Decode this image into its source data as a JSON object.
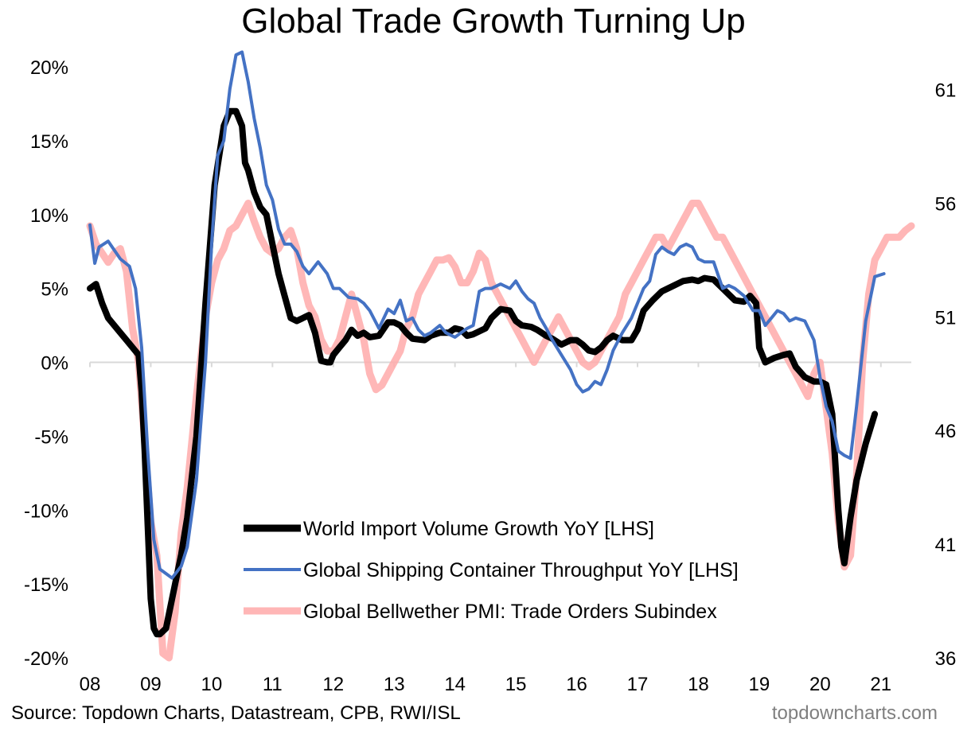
{
  "chart_data": {
    "type": "line",
    "title": "Global Trade Growth Turning Up",
    "left_axis": {
      "ylim": [
        -20,
        20
      ],
      "ticks": [
        "20%",
        "15%",
        "10%",
        "5%",
        "0%",
        "-5%",
        "-10%",
        "-15%",
        "-20%"
      ]
    },
    "right_axis": {
      "ylim": [
        36,
        62
      ],
      "ticks": [
        "61",
        "56",
        "51",
        "46",
        "41",
        "36"
      ]
    },
    "x_axis": {
      "xlim": [
        2008,
        2021.5
      ],
      "ticks": [
        "08",
        "09",
        "10",
        "11",
        "12",
        "13",
        "14",
        "15",
        "16",
        "17",
        "18",
        "19",
        "20",
        "21"
      ]
    },
    "legend_position": "lower-center",
    "series": [
      {
        "name": "World Import Volume Growth YoY [LHS]",
        "color": "#000000",
        "axis": "left",
        "x": [
          2008.0,
          2008.1,
          2008.2,
          2008.3,
          2008.5,
          2008.6,
          2008.8,
          2008.85,
          2008.9,
          2008.95,
          2009.0,
          2009.05,
          2009.1,
          2009.15,
          2009.25,
          2009.35,
          2009.5,
          2009.6,
          2009.75,
          2009.9,
          2010.05,
          2010.2,
          2010.3,
          2010.4,
          2010.5,
          2010.55,
          2010.6,
          2010.7,
          2010.8,
          2010.9,
          2011.0,
          2011.1,
          2011.2,
          2011.3,
          2011.4,
          2011.5,
          2011.6,
          2011.7,
          2011.8,
          2011.9,
          2011.95,
          2012.0,
          2012.1,
          2012.2,
          2012.3,
          2012.4,
          2012.5,
          2012.6,
          2012.75,
          2012.9,
          2013.0,
          2013.1,
          2013.2,
          2013.3,
          2013.5,
          2013.6,
          2013.75,
          2013.9,
          2014.0,
          2014.1,
          2014.2,
          2014.3,
          2014.5,
          2014.6,
          2014.75,
          2014.9,
          2015.0,
          2015.1,
          2015.25,
          2015.35,
          2015.5,
          2015.6,
          2015.75,
          2015.9,
          2016.0,
          2016.1,
          2016.2,
          2016.3,
          2016.4,
          2016.5,
          2016.6,
          2016.75,
          2016.9,
          2017.0,
          2017.1,
          2017.25,
          2017.4,
          2017.5,
          2017.6,
          2017.75,
          2017.9,
          2018.0,
          2018.1,
          2018.25,
          2018.4,
          2018.5,
          2018.6,
          2018.75,
          2018.85,
          2018.95,
          2019.0,
          2019.1,
          2019.25,
          2019.4,
          2019.5,
          2019.6,
          2019.75,
          2019.9,
          2020.0,
          2020.1,
          2020.15,
          2020.2,
          2020.3,
          2020.35,
          2020.4,
          2020.5,
          2020.6,
          2020.75,
          2020.9
        ],
        "y": [
          5.0,
          5.3,
          4.0,
          3.0,
          2.0,
          1.5,
          0.5,
          -2.0,
          -6.0,
          -11.0,
          -16.0,
          -18.0,
          -18.4,
          -18.4,
          -18.0,
          -16.0,
          -13.0,
          -10.5,
          -5.0,
          4.0,
          12.0,
          16.0,
          17.0,
          17.0,
          16.0,
          13.5,
          13.0,
          11.5,
          10.5,
          10.0,
          8.0,
          6.0,
          4.5,
          3.0,
          2.8,
          3.0,
          3.2,
          2.0,
          0.1,
          0.0,
          0.0,
          0.5,
          1.0,
          1.5,
          2.2,
          1.8,
          2.0,
          1.7,
          1.8,
          2.7,
          2.7,
          2.5,
          2.0,
          1.6,
          1.5,
          1.8,
          2.0,
          2.0,
          2.3,
          2.2,
          1.8,
          1.9,
          2.3,
          3.0,
          3.6,
          3.5,
          2.8,
          2.5,
          2.4,
          2.2,
          1.8,
          1.6,
          1.2,
          1.5,
          1.5,
          1.2,
          0.8,
          0.7,
          1.0,
          1.5,
          1.8,
          1.5,
          1.5,
          2.2,
          3.5,
          4.2,
          4.8,
          5.0,
          5.2,
          5.5,
          5.6,
          5.5,
          5.7,
          5.6,
          5.0,
          4.6,
          4.2,
          4.1,
          4.5,
          4.0,
          1.0,
          0.0,
          0.3,
          0.5,
          0.6,
          -0.3,
          -1.0,
          -1.3,
          -1.3,
          -1.5,
          -2.5,
          -3.5,
          -10.0,
          -12.5,
          -13.6,
          -10.5,
          -8.0,
          -5.5,
          -3.5
        ]
      },
      {
        "name": "Global Shipping Container Throughput YoY [LHS]",
        "color": "#4472c4",
        "axis": "left",
        "x": [
          2008.0,
          2008.08,
          2008.15,
          2008.3,
          2008.5,
          2008.65,
          2008.75,
          2008.85,
          2008.95,
          2009.05,
          2009.15,
          2009.25,
          2009.35,
          2009.5,
          2009.6,
          2009.75,
          2009.9,
          2010.0,
          2010.1,
          2010.2,
          2010.3,
          2010.4,
          2010.5,
          2010.55,
          2010.6,
          2010.7,
          2010.8,
          2010.9,
          2011.0,
          2011.1,
          2011.2,
          2011.3,
          2011.4,
          2011.5,
          2011.6,
          2011.75,
          2011.9,
          2012.0,
          2012.1,
          2012.25,
          2012.4,
          2012.5,
          2012.6,
          2012.75,
          2012.9,
          2013.0,
          2013.1,
          2013.2,
          2013.3,
          2013.4,
          2013.5,
          2013.6,
          2013.75,
          2013.85,
          2014.0,
          2014.1,
          2014.2,
          2014.3,
          2014.4,
          2014.5,
          2014.6,
          2014.75,
          2014.9,
          2015.0,
          2015.1,
          2015.2,
          2015.3,
          2015.4,
          2015.5,
          2015.6,
          2015.75,
          2015.9,
          2016.0,
          2016.1,
          2016.2,
          2016.3,
          2016.4,
          2016.5,
          2016.6,
          2016.75,
          2016.9,
          2017.0,
          2017.1,
          2017.2,
          2017.3,
          2017.4,
          2017.5,
          2017.6,
          2017.7,
          2017.8,
          2017.9,
          2018.0,
          2018.1,
          2018.25,
          2018.4,
          2018.5,
          2018.6,
          2018.75,
          2018.9,
          2019.0,
          2019.1,
          2019.2,
          2019.3,
          2019.4,
          2019.5,
          2019.6,
          2019.75,
          2019.9,
          2020.0,
          2020.1,
          2020.2,
          2020.3,
          2020.4,
          2020.5,
          2020.6,
          2020.75,
          2020.9,
          2021.05
        ],
        "y": [
          9.3,
          6.7,
          7.8,
          8.2,
          7.0,
          6.5,
          5.0,
          1.0,
          -6.0,
          -12.0,
          -14.0,
          -14.3,
          -14.6,
          -13.8,
          -12.5,
          -8.0,
          0.0,
          8.0,
          14.0,
          15.0,
          18.5,
          20.8,
          21.0,
          20.0,
          19.0,
          16.5,
          14.5,
          12.0,
          11.0,
          9.0,
          8.0,
          8.0,
          7.5,
          6.5,
          6.0,
          6.8,
          6.0,
          5.0,
          5.0,
          4.4,
          4.3,
          4.0,
          3.5,
          2.3,
          3.6,
          3.3,
          4.2,
          2.8,
          3.0,
          2.2,
          1.8,
          2.0,
          2.5,
          2.0,
          1.7,
          2.0,
          2.3,
          2.5,
          4.8,
          5.0,
          5.0,
          5.3,
          5.0,
          5.5,
          4.8,
          4.3,
          4.0,
          3.0,
          2.3,
          1.5,
          0.5,
          -0.5,
          -1.5,
          -2.0,
          -1.8,
          -1.3,
          -1.5,
          -0.5,
          0.8,
          2.0,
          3.0,
          4.0,
          5.0,
          5.5,
          7.3,
          7.8,
          7.5,
          7.3,
          7.8,
          8.0,
          7.8,
          7.0,
          6.8,
          6.8,
          5.0,
          5.2,
          5.0,
          4.5,
          3.5,
          3.5,
          2.5,
          3.0,
          3.5,
          3.3,
          2.8,
          3.0,
          2.8,
          1.5,
          -1.0,
          -3.0,
          -4.0,
          -6.0,
          -6.3,
          -6.5,
          -3.0,
          2.8,
          5.8,
          6.0
        ]
      },
      {
        "name": "Global Bellwether PMI: Trade Orders Subindex",
        "color": "#ffaaaa",
        "axis": "right",
        "x": [
          2008.0,
          2008.1,
          2008.2,
          2008.3,
          2008.4,
          2008.5,
          2008.6,
          2008.7,
          2008.8,
          2008.9,
          2009.0,
          2009.1,
          2009.2,
          2009.3,
          2009.4,
          2009.5,
          2009.6,
          2009.75,
          2009.9,
          2010.0,
          2010.1,
          2010.2,
          2010.3,
          2010.4,
          2010.5,
          2010.6,
          2010.7,
          2010.8,
          2010.9,
          2011.0,
          2011.1,
          2011.2,
          2011.3,
          2011.4,
          2011.5,
          2011.6,
          2011.7,
          2011.8,
          2011.9,
          2012.0,
          2012.1,
          2012.2,
          2012.3,
          2012.4,
          2012.5,
          2012.6,
          2012.7,
          2012.8,
          2012.9,
          2013.0,
          2013.1,
          2013.2,
          2013.3,
          2013.4,
          2013.5,
          2013.6,
          2013.7,
          2013.8,
          2013.9,
          2014.0,
          2014.1,
          2014.2,
          2014.3,
          2014.4,
          2014.5,
          2014.6,
          2014.7,
          2014.8,
          2014.9,
          2015.0,
          2015.1,
          2015.2,
          2015.3,
          2015.4,
          2015.5,
          2015.6,
          2015.7,
          2015.8,
          2015.9,
          2016.0,
          2016.1,
          2016.2,
          2016.3,
          2016.4,
          2016.5,
          2016.6,
          2016.7,
          2016.8,
          2016.9,
          2017.0,
          2017.1,
          2017.2,
          2017.3,
          2017.4,
          2017.5,
          2017.6,
          2017.7,
          2017.8,
          2017.9,
          2018.0,
          2018.1,
          2018.2,
          2018.3,
          2018.4,
          2018.5,
          2018.6,
          2018.7,
          2018.8,
          2018.9,
          2019.0,
          2019.1,
          2019.2,
          2019.3,
          2019.4,
          2019.5,
          2019.6,
          2019.7,
          2019.8,
          2019.9,
          2020.0,
          2020.1,
          2020.2,
          2020.3,
          2020.4,
          2020.5,
          2020.6,
          2020.7,
          2020.8,
          2020.9,
          2021.0,
          2021.1,
          2021.2,
          2021.3,
          2021.4,
          2021.5
        ],
        "y": [
          55.0,
          54.2,
          53.8,
          53.4,
          53.8,
          54.0,
          53.0,
          50.5,
          49.0,
          45.5,
          42.0,
          40.5,
          36.2,
          36.0,
          38.0,
          41.5,
          43.5,
          47.5,
          51.0,
          52.5,
          53.5,
          54.0,
          54.8,
          55.0,
          55.5,
          56.0,
          55.2,
          54.5,
          54.0,
          53.8,
          54.0,
          54.5,
          54.8,
          54.0,
          52.5,
          51.5,
          51.0,
          50.0,
          49.5,
          49.5,
          50.0,
          51.0,
          52.0,
          51.0,
          50.0,
          48.5,
          47.8,
          48.0,
          48.5,
          49.0,
          49.5,
          50.5,
          51.0,
          52.0,
          52.5,
          53.0,
          53.5,
          53.5,
          53.6,
          53.2,
          52.5,
          52.5,
          53.0,
          53.8,
          53.5,
          52.5,
          52.0,
          51.5,
          51.0,
          50.5,
          50.0,
          49.5,
          49.0,
          49.5,
          50.0,
          50.5,
          51.0,
          50.5,
          50.0,
          49.5,
          49.0,
          48.8,
          49.0,
          49.5,
          50.0,
          50.5,
          51.0,
          52.0,
          52.5,
          53.0,
          53.5,
          54.0,
          54.5,
          54.5,
          54.0,
          54.5,
          55.0,
          55.5,
          56.0,
          56.0,
          55.5,
          55.0,
          54.5,
          54.5,
          54.0,
          53.5,
          53.0,
          52.5,
          52.0,
          51.5,
          51.0,
          50.5,
          50.0,
          49.5,
          49.0,
          48.5,
          48.0,
          47.5,
          48.5,
          49.0,
          47.0,
          45.0,
          42.0,
          40.0,
          40.5,
          44.0,
          49.0,
          52.0,
          53.5,
          54.0,
          54.5,
          54.5,
          54.5,
          54.8,
          55.0
        ]
      }
    ]
  },
  "source_text": "Source: Topdown Charts, Datastream, CPB, RWI/ISL",
  "brand_text": "topdowncharts.com"
}
